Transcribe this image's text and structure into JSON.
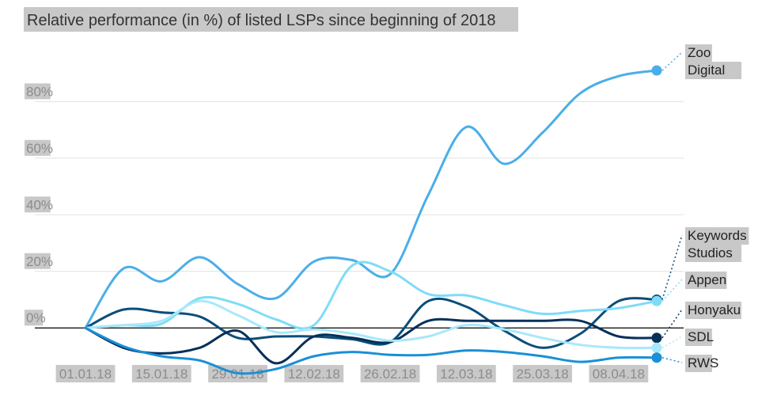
{
  "chart_data": {
    "type": "line",
    "title": "Relative performance (in %) of listed LSPs since beginning of 2018",
    "xlabel": "",
    "ylabel": "",
    "x_ticks": [
      "01.01.18",
      "15.01.18",
      "29.01.18",
      "12.02.18",
      "26.02.18",
      "12.03.18",
      "25.03.18",
      "08.04.18"
    ],
    "x_tick_weeks": [
      0,
      2,
      4,
      6,
      8,
      10,
      12,
      14
    ],
    "y_ticks": [
      {
        "value": 0,
        "label": "0%"
      },
      {
        "value": 20,
        "label": "20%"
      },
      {
        "value": 40,
        "label": "40%"
      },
      {
        "value": 60,
        "label": "60%"
      },
      {
        "value": 80,
        "label": "80%"
      }
    ],
    "xlim": [
      0,
      15
    ],
    "ylim": [
      -17,
      98
    ],
    "grid": true,
    "series": [
      {
        "name": "Zoo Digital",
        "label_lines": [
          "Zoo",
          "Digital"
        ],
        "color": "#4aaee8",
        "end_marker": "filled",
        "values": [
          0,
          21,
          16.5,
          25,
          15.5,
          10.5,
          23.5,
          24,
          19,
          47,
          71,
          58,
          69,
          83,
          89,
          91
        ]
      },
      {
        "name": "Keywords Studios",
        "label_lines": [
          "Keywords",
          "Studios"
        ],
        "color": "#0a4d7a",
        "end_marker": "hollow",
        "values": [
          0,
          6.5,
          5.5,
          4,
          -3.5,
          -3,
          -3,
          -4,
          -5,
          9.5,
          7.5,
          -1,
          -7,
          -2,
          9.5,
          10
        ]
      },
      {
        "name": "Appen",
        "label_lines": [
          "Appen"
        ],
        "color": "#7fdcf7",
        "end_marker": "filled",
        "values": [
          0,
          1,
          1.5,
          10.5,
          8.5,
          3,
          1,
          22,
          20,
          12,
          11.5,
          8,
          5,
          6,
          7,
          9.5
        ]
      },
      {
        "name": "Honyaku",
        "label_lines": [
          "Honyaku"
        ],
        "color": "#05305a",
        "end_marker": "filled",
        "values": [
          0,
          -7,
          -9,
          -7,
          -1,
          -12.5,
          -3,
          -3.5,
          -5,
          2.5,
          2.5,
          2.5,
          2.5,
          2.5,
          -3,
          -3.5
        ]
      },
      {
        "name": "SDL",
        "label_lines": [
          "SDL"
        ],
        "color": "#a8e8fb",
        "end_marker": "filled",
        "values": [
          0,
          1,
          2.5,
          9.5,
          4.5,
          -1.5,
          -0.5,
          -2,
          -4.5,
          -3,
          1,
          -0.5,
          -3.5,
          -6,
          -7,
          -7
        ]
      },
      {
        "name": "RWS",
        "label_lines": [
          "RWS"
        ],
        "color": "#1a90d6",
        "end_marker": "filled",
        "values": [
          0,
          -6.5,
          -10,
          -11.5,
          -16,
          -14.5,
          -10,
          -8.5,
          -9.5,
          -9.5,
          -8,
          -8.5,
          -10,
          -12,
          -10.5,
          -10.5
        ]
      }
    ]
  }
}
